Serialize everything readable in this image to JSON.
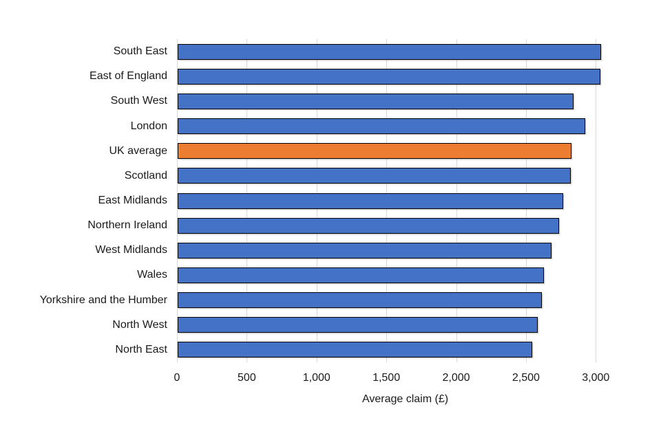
{
  "chart_data": {
    "type": "bar",
    "orientation": "horizontal",
    "title": "",
    "xlabel": "Average claim (£)",
    "ylabel": "",
    "categories": [
      "South East",
      "East of England",
      "South West",
      "London",
      "UK average",
      "Scotland",
      "East Midlands",
      "Northern Ireland",
      "West Midlands",
      "Wales",
      "Yorkshire and the Humber",
      "North West",
      "North East"
    ],
    "values": [
      3035,
      3030,
      2835,
      2920,
      2820,
      2815,
      2760,
      2730,
      2680,
      2625,
      2610,
      2580,
      2540
    ],
    "highlight_category": "UK average",
    "highlight_index": 4,
    "xticks": [
      0,
      500,
      1000,
      1500,
      2000,
      2500,
      3000
    ],
    "xtick_labels": [
      "0",
      "500",
      "1,000",
      "1,500",
      "2,000",
      "2,500",
      "3,000"
    ],
    "xlim": [
      0,
      3270
    ],
    "grid": true,
    "legend": "none",
    "colors": {
      "bar": "#4472C4",
      "highlight": "#ED7D31",
      "bar_border": "#000000",
      "gridline": "#D9D9D9",
      "text": "#1A1A1A",
      "background": "#FFFFFF"
    }
  }
}
